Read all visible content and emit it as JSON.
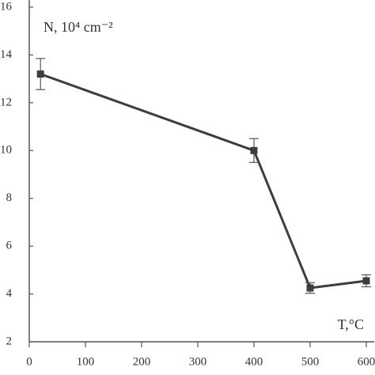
{
  "chart_data": {
    "type": "line",
    "x_label": "T,°C",
    "y_label": "N, 10⁴ cm⁻²",
    "x": [
      20,
      400,
      500,
      600
    ],
    "series": [
      {
        "color": "#3d3d3d",
        "values": [
          13.2,
          10.0,
          4.25,
          4.55
        ],
        "errors": [
          0.65,
          0.5,
          0.22,
          0.25
        ]
      }
    ],
    "xlim": [
      0,
      600
    ],
    "xticks": [
      0,
      100,
      200,
      300,
      400,
      500,
      600
    ],
    "ylim": [
      2,
      16
    ],
    "yticks": [
      2,
      4,
      6,
      8,
      10,
      12,
      14,
      16
    ]
  }
}
